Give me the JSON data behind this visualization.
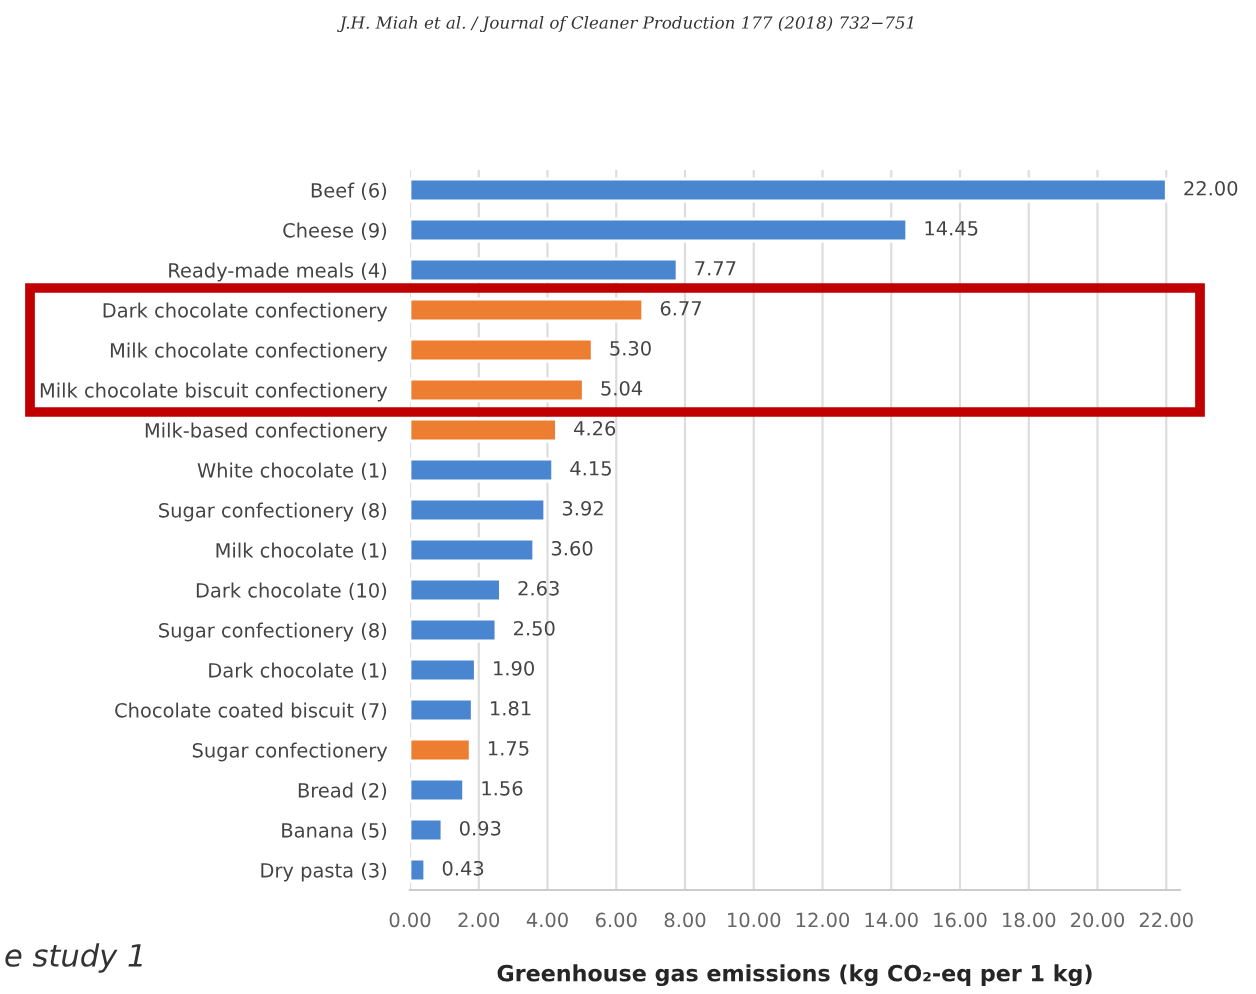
{
  "chart_data": {
    "type": "bar",
    "orientation": "horizontal",
    "title": "J.H. Miah et al. / Journal of Cleaner Production 177 (2018) 732−751",
    "xlabel": "Greenhouse gas emissions (kg CO₂-eq per 1 kg)",
    "annotations": [
      "e study 1"
    ],
    "categories": [
      "Beef (6)",
      "Cheese (9)",
      "Ready-made meals (4)",
      "Dark chocolate confectionery",
      "Milk chocolate confectionery",
      "Milk chocolate biscuit confectionery",
      "Milk-based confectionery",
      "White chocolate (1)",
      "Sugar confectionery (8)",
      "Milk chocolate (1)",
      "Dark chocolate (10)",
      "Sugar confectionery (8)",
      "Dark chocolate (1)",
      "Chocolate coated biscuit (7)",
      "Sugar confectionery",
      "Bread (2)",
      "Banana (5)",
      "Dry pasta (3)"
    ],
    "values": [
      22.0,
      14.45,
      7.77,
      6.77,
      5.3,
      5.04,
      4.26,
      4.15,
      3.92,
      3.6,
      2.63,
      2.5,
      1.9,
      1.81,
      1.75,
      1.56,
      0.93,
      0.43
    ],
    "value_labels": [
      "22.00",
      "14.45",
      "7.77",
      "6.77",
      "5.30",
      "5.04",
      "4.26",
      "4.15",
      "3.92",
      "3.60",
      "2.63",
      "2.50",
      "1.90",
      "1.81",
      "1.75",
      "1.56",
      "0.93",
      "0.43"
    ],
    "colors": [
      "#4a86d0",
      "#4a86d0",
      "#4a86d0",
      "#ed7d31",
      "#ed7d31",
      "#ed7d31",
      "#ed7d31",
      "#4a86d0",
      "#4a86d0",
      "#4a86d0",
      "#4a86d0",
      "#4a86d0",
      "#4a86d0",
      "#4a86d0",
      "#ed7d31",
      "#4a86d0",
      "#4a86d0",
      "#4a86d0"
    ],
    "xlim": [
      0,
      22.4
    ],
    "xticks": [
      {
        "value": 0,
        "label": "0.00"
      },
      {
        "value": 2,
        "label": "2.00"
      },
      {
        "value": 4,
        "label": "4.00"
      },
      {
        "value": 6,
        "label": "6.00"
      },
      {
        "value": 8,
        "label": "8.00"
      },
      {
        "value": 10,
        "label": "10.00"
      },
      {
        "value": 12,
        "label": "12.00"
      },
      {
        "value": 14,
        "label": "14.00"
      },
      {
        "value": 16,
        "label": "16.00"
      },
      {
        "value": 18,
        "label": "18.00"
      },
      {
        "value": 20,
        "label": "20.00"
      },
      {
        "value": 22,
        "label": "22.00"
      }
    ],
    "grid": "x",
    "legend": false
  }
}
